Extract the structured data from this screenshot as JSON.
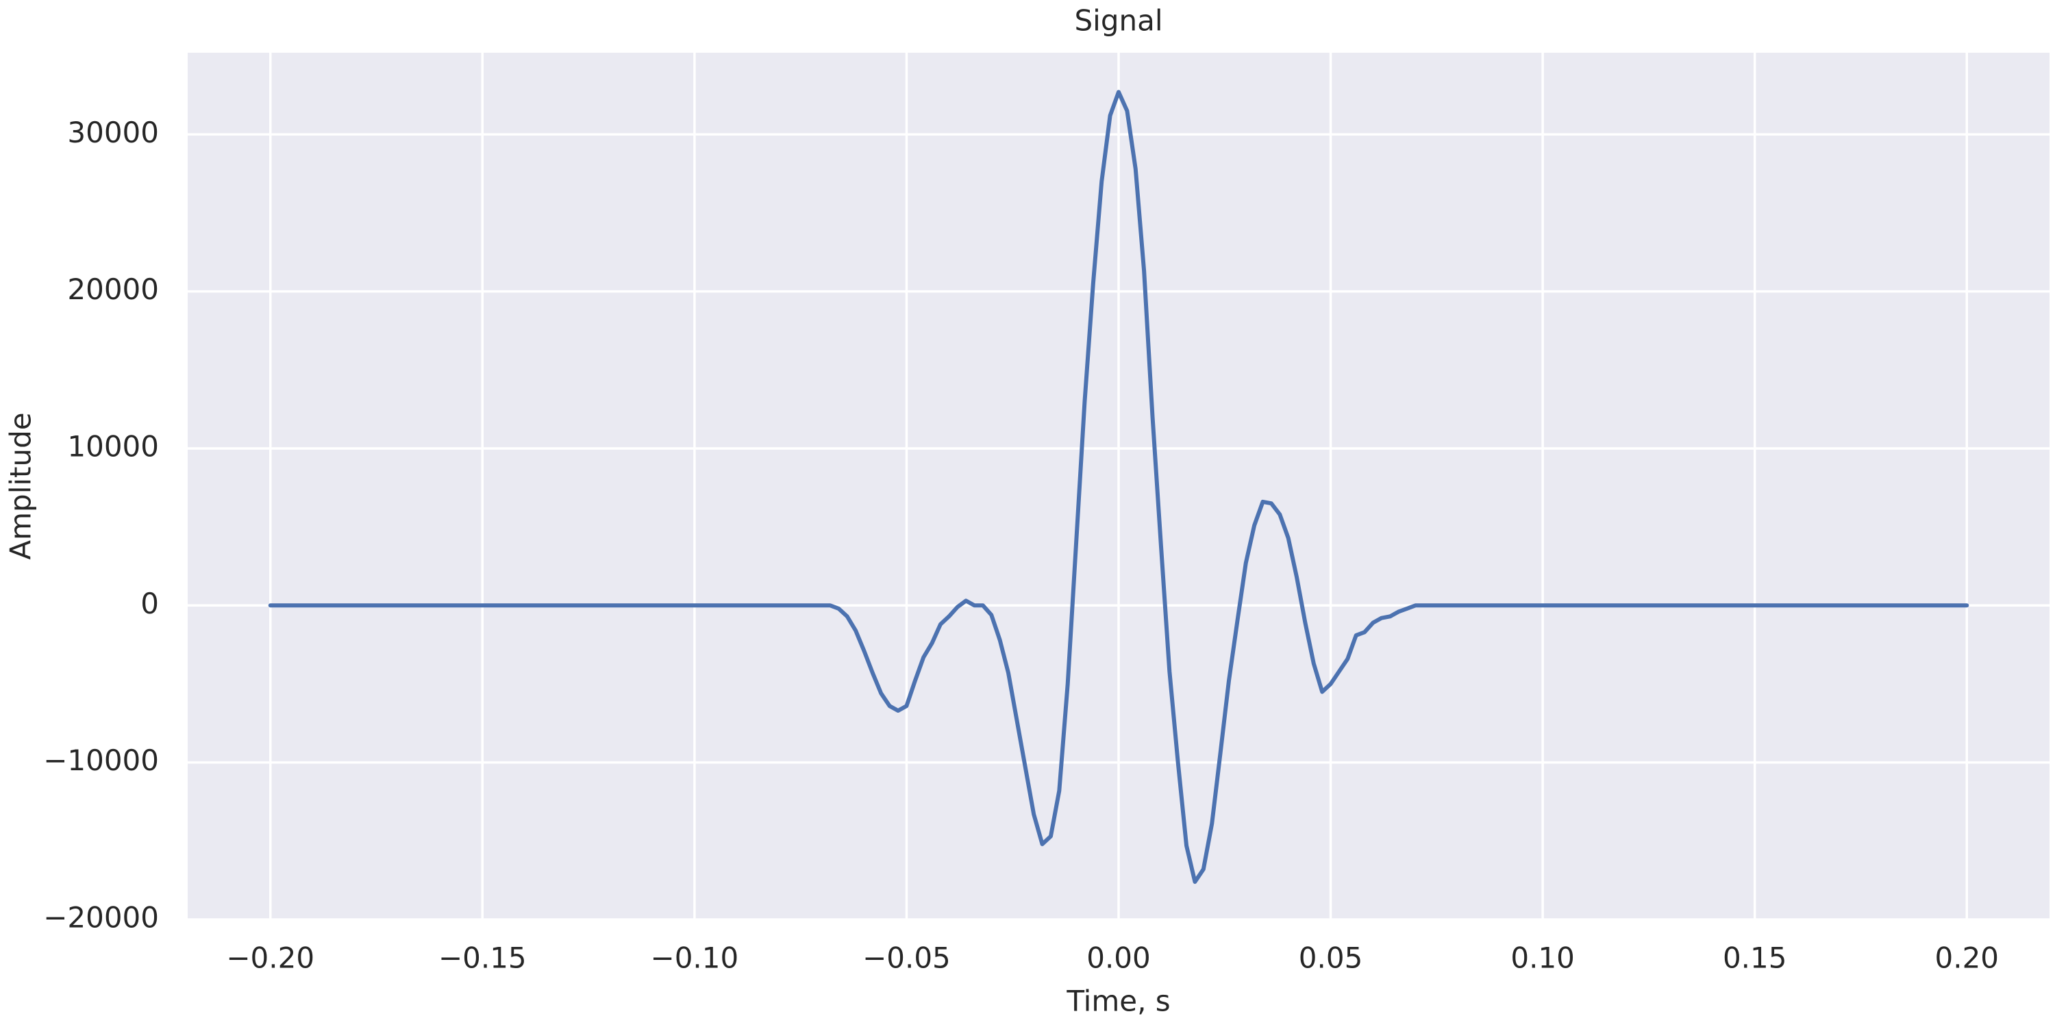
{
  "chart_data": {
    "type": "line",
    "title": "Signal",
    "xlabel": "Time, s",
    "ylabel": "Amplitude",
    "x": [
      -0.2,
      -0.07,
      -0.068,
      -0.066,
      -0.064,
      -0.062,
      -0.06,
      -0.058,
      -0.056,
      -0.054,
      -0.052,
      -0.05,
      -0.048,
      -0.046,
      -0.044,
      -0.042,
      -0.04,
      -0.038,
      -0.036,
      -0.034,
      -0.032,
      -0.03,
      -0.028,
      -0.026,
      -0.024,
      -0.022,
      -0.02,
      -0.018,
      -0.016,
      -0.014,
      -0.012,
      -0.01,
      -0.008,
      -0.006,
      -0.004,
      -0.002,
      0.0,
      0.002,
      0.004,
      0.006,
      0.008,
      0.01,
      0.012,
      0.014,
      0.016,
      0.018,
      0.02,
      0.022,
      0.024,
      0.026,
      0.028,
      0.03,
      0.032,
      0.034,
      0.036,
      0.038,
      0.04,
      0.042,
      0.044,
      0.046,
      0.048,
      0.05,
      0.052,
      0.054,
      0.056,
      0.058,
      0.06,
      0.062,
      0.064,
      0.066,
      0.068,
      0.07,
      0.2
    ],
    "values": [
      0,
      0,
      0,
      -200,
      -700,
      -1600,
      -2900,
      -4300,
      -5600,
      -6400,
      -6700,
      -6400,
      -4800,
      -3300,
      -2400,
      -1200,
      -700,
      -100,
      300,
      0,
      0,
      -600,
      -2200,
      -4300,
      -7300,
      -10300,
      -13300,
      -15200,
      -14700,
      -11800,
      -5000,
      4000,
      13000,
      20500,
      27000,
      31200,
      32700,
      31500,
      27800,
      21300,
      12000,
      3800,
      -4200,
      -10000,
      -15300,
      -17600,
      -16800,
      -13900,
      -9400,
      -4800,
      -1000,
      2700,
      5100,
      6600,
      6500,
      5800,
      4300,
      1800,
      -1100,
      -3700,
      -5500,
      -5000,
      -4200,
      -3400,
      -1900,
      -1700,
      -1100,
      -800,
      -700,
      -400,
      -200,
      0,
      0
    ],
    "color": "#4c72b0",
    "xlim": [
      -0.2195,
      0.2195
    ],
    "xticks": [
      {
        "value": -0.2,
        "label": "−0.20"
      },
      {
        "value": -0.15,
        "label": "−0.15"
      },
      {
        "value": -0.1,
        "label": "−0.10"
      },
      {
        "value": -0.05,
        "label": "−0.05"
      },
      {
        "value": 0,
        "label": "0.00"
      },
      {
        "value": 0.05,
        "label": "0.05"
      },
      {
        "value": 0.1,
        "label": "0.10"
      },
      {
        "value": 0.15,
        "label": "0.15"
      },
      {
        "value": 0.2,
        "label": "0.20"
      }
    ],
    "ylim": [
      -20000,
      35200
    ],
    "yticks": [
      {
        "value": -20000,
        "label": "−20000"
      },
      {
        "value": -10000,
        "label": "−10000"
      },
      0,
      10000,
      20000,
      30000
    ],
    "grid": true
  }
}
